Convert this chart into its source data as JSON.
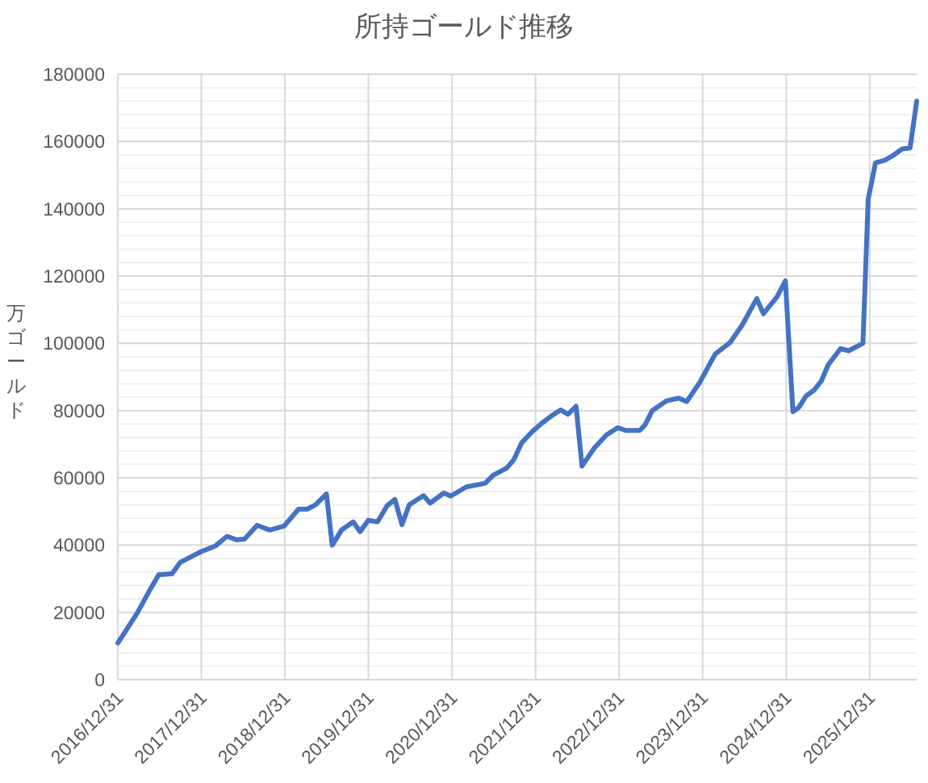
{
  "chart_data": {
    "type": "line",
    "title": "所持ゴールド推移",
    "ylabel": "万ゴールド",
    "x": [
      "2016-12-31",
      "2017-03-25",
      "2017-05-22",
      "2017-06-28",
      "2017-08-25",
      "2017-09-30",
      "2017-12-31",
      "2018-03-01",
      "2018-04-22",
      "2018-06-03",
      "2018-07-08",
      "2018-09-01",
      "2018-10-26",
      "2018-12-28",
      "2019-03-01",
      "2019-04-08",
      "2019-05-14",
      "2019-07-01",
      "2019-07-26",
      "2019-09-05",
      "2019-10-26",
      "2019-11-25",
      "2019-12-31",
      "2020-02-09",
      "2020-03-22",
      "2020-04-25",
      "2020-05-26",
      "2020-06-27",
      "2020-08-28",
      "2020-09-26",
      "2020-11-25",
      "2020-12-25",
      "2021-03-03",
      "2021-05-25",
      "2021-06-29",
      "2021-08-27",
      "2021-09-26",
      "2021-10-31",
      "2021-12-17",
      "2022-02-01",
      "2022-03-10",
      "2022-04-20",
      "2022-05-22",
      "2022-06-26",
      "2022-07-22",
      "2022-09-13",
      "2022-11-06",
      "2022-12-24",
      "2023-02-01",
      "2023-03-31",
      "2023-04-23",
      "2023-05-25",
      "2023-07-27",
      "2023-09-17",
      "2023-10-23",
      "2023-12-17",
      "2024-02-24",
      "2024-04-30",
      "2024-06-20",
      "2024-08-24",
      "2024-09-22",
      "2024-11-20",
      "2024-12-27",
      "2025-01-29",
      "2025-02-22",
      "2025-03-29",
      "2025-04-29",
      "2025-06-02",
      "2025-07-02",
      "2025-08-25",
      "2025-09-30",
      "2025-12-01",
      "2025-12-24",
      "2026-01-25",
      "2026-03-06",
      "2026-04-08",
      "2026-05-22",
      "2026-06-25",
      "2026-07-24"
    ],
    "series": [
      {
        "color": "#4472c4",
        "values": [
          10900,
          19700,
          26900,
          31200,
          31500,
          34900,
          38100,
          39700,
          42600,
          41600,
          41800,
          45900,
          44500,
          45700,
          50700,
          50700,
          52000,
          55200,
          40000,
          44500,
          46900,
          44000,
          47400,
          46900,
          51700,
          53600,
          46100,
          52000,
          54700,
          52500,
          55500,
          54600,
          57300,
          58400,
          60800,
          62900,
          65300,
          70400,
          73800,
          76500,
          78400,
          80200,
          78900,
          81300,
          63500,
          68800,
          72800,
          74900,
          74100,
          74100,
          75700,
          80000,
          82900,
          83700,
          82700,
          88200,
          96800,
          100300,
          105300,
          113300,
          108800,
          113800,
          118600,
          79700,
          80800,
          84500,
          85900,
          88800,
          93600,
          98400,
          97800,
          100000,
          142900,
          153700,
          154400,
          155700,
          157800,
          158100,
          172000
        ]
      }
    ],
    "xlim": [
      "2016-12-31",
      "2026-07-24"
    ],
    "xticks": [
      {
        "value": "2016-12-31",
        "label": "2016/12/31"
      },
      {
        "value": "2017-12-31",
        "label": "2017/12/31"
      },
      {
        "value": "2018-12-31",
        "label": "2018/12/31"
      },
      {
        "value": "2019-12-31",
        "label": "2019/12/31"
      },
      {
        "value": "2020-12-31",
        "label": "2020/12/31"
      },
      {
        "value": "2021-12-31",
        "label": "2021/12/31"
      },
      {
        "value": "2022-12-31",
        "label": "2022/12/31"
      },
      {
        "value": "2023-12-31",
        "label": "2023/12/31"
      },
      {
        "value": "2024-12-31",
        "label": "2024/12/31"
      },
      {
        "value": "2025-12-31",
        "label": "2025/12/31"
      }
    ],
    "ylim": [
      0,
      180000
    ],
    "yticks": [
      0,
      {
        "value": 4000,
        "label": null
      },
      {
        "value": 8000,
        "label": null
      },
      {
        "value": 12000,
        "label": null
      },
      {
        "value": 16000,
        "label": null
      },
      20000,
      {
        "value": 24000,
        "label": null
      },
      {
        "value": 28000,
        "label": null
      },
      {
        "value": 32000,
        "label": null
      },
      {
        "value": 36000,
        "label": null
      },
      40000,
      {
        "value": 44000,
        "label": null
      },
      {
        "value": 48000,
        "label": null
      },
      {
        "value": 52000,
        "label": null
      },
      {
        "value": 56000,
        "label": null
      },
      60000,
      {
        "value": 64000,
        "label": null
      },
      {
        "value": 68000,
        "label": null
      },
      {
        "value": 72000,
        "label": null
      },
      {
        "value": 76000,
        "label": null
      },
      80000,
      {
        "value": 84000,
        "label": null
      },
      {
        "value": 88000,
        "label": null
      },
      {
        "value": 92000,
        "label": null
      },
      {
        "value": 96000,
        "label": null
      },
      100000,
      {
        "value": 104000,
        "label": null
      },
      {
        "value": 108000,
        "label": null
      },
      {
        "value": 112000,
        "label": null
      },
      {
        "value": 116000,
        "label": null
      },
      120000,
      {
        "value": 124000,
        "label": null
      },
      {
        "value": 128000,
        "label": null
      },
      {
        "value": 132000,
        "label": null
      },
      {
        "value": 136000,
        "label": null
      },
      140000,
      {
        "value": 144000,
        "label": null
      },
      {
        "value": 148000,
        "label": null
      },
      {
        "value": 152000,
        "label": null
      },
      {
        "value": 156000,
        "label": null
      },
      160000,
      {
        "value": 164000,
        "label": null
      },
      {
        "value": 168000,
        "label": null
      },
      {
        "value": 172000,
        "label": null
      },
      {
        "value": 176000,
        "label": null
      },
      180000
    ],
    "grid": true,
    "marker": "none",
    "line_style": "solid"
  }
}
